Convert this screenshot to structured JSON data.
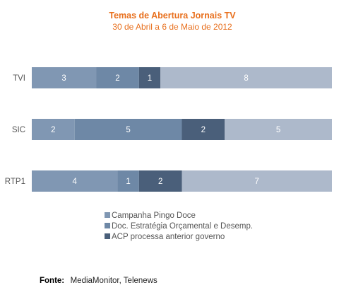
{
  "chart_data": {
    "type": "bar",
    "orientation": "horizontal",
    "stacked": true,
    "title": "Temas de Abertura Jornais TV",
    "subtitle": "30 de Abril a 6 de Maio de 2012",
    "categories": [
      "TVI",
      "SIC",
      "RTP1"
    ],
    "series": [
      {
        "name": "Campanha Pingo Doce",
        "color": "#8097b3",
        "values": [
          3,
          2,
          4
        ]
      },
      {
        "name": "Doc. Estratégia Orçamental e Desemp.",
        "color": "#6e88a6",
        "values": [
          2,
          5,
          1
        ]
      },
      {
        "name": "ACP processa anterior governo",
        "color": "#4a5f7a",
        "values": [
          1,
          2,
          2
        ]
      },
      {
        "name": "",
        "color": "#adb9cb",
        "values": [
          8,
          5,
          7
        ]
      }
    ],
    "xlim": [
      0,
      14
    ],
    "grid": false,
    "legend": "bottom-center"
  },
  "source": {
    "label": "Fonte:",
    "text": "MediaMonitor, Telenews"
  }
}
